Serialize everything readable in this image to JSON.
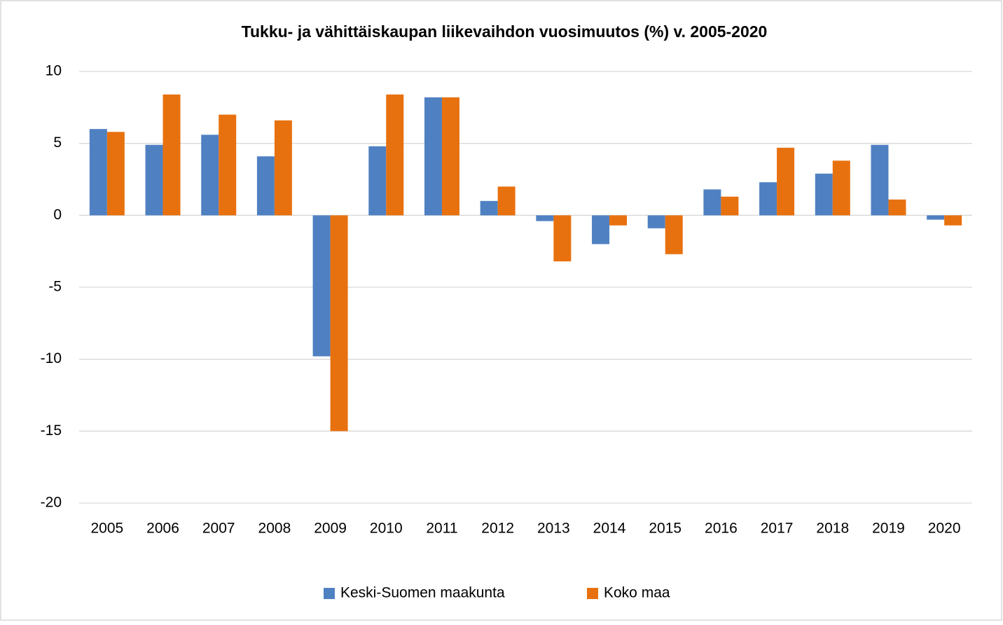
{
  "chart_data": {
    "type": "bar",
    "title": "Tukku- ja vähittäiskaupan liikevaihdon vuosimuutos (%) v. 2005-2020",
    "categories": [
      "2005",
      "2006",
      "2007",
      "2008",
      "2009",
      "2010",
      "2011",
      "2012",
      "2013",
      "2014",
      "2015",
      "2016",
      "2017",
      "2018",
      "2019",
      "2020"
    ],
    "series": [
      {
        "name": "Keski-Suomen maakunta",
        "color": "#4f81c2",
        "values": [
          6.0,
          4.9,
          5.6,
          4.1,
          -9.8,
          4.8,
          8.2,
          1.0,
          -0.4,
          -2.0,
          -0.9,
          1.8,
          2.3,
          2.9,
          4.9,
          -0.3
        ]
      },
      {
        "name": "Koko maa",
        "color": "#e8710f",
        "values": [
          5.8,
          8.4,
          7.0,
          6.6,
          -15.0,
          8.4,
          8.2,
          2.0,
          -3.2,
          -0.7,
          -2.7,
          1.3,
          4.7,
          3.8,
          1.1,
          -0.7
        ]
      }
    ],
    "ylim": [
      -20,
      10
    ],
    "yticks": [
      -20,
      -15,
      -10,
      -5,
      0,
      5,
      10
    ],
    "grid": true,
    "legend": "bottom"
  }
}
